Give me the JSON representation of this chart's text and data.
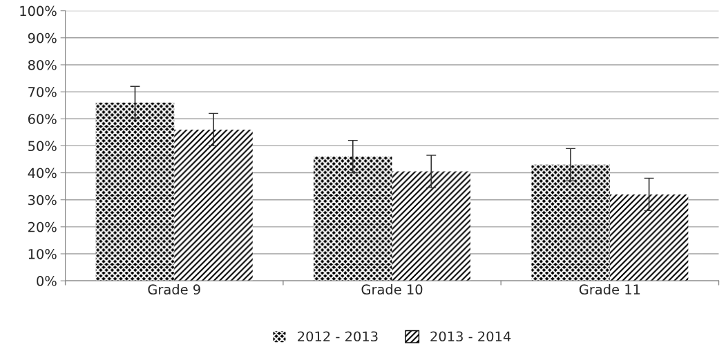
{
  "chart_data": {
    "type": "bar",
    "categories": [
      "Grade 9",
      "Grade 10",
      "Grade 11"
    ],
    "series": [
      {
        "name": "2012 - 2013",
        "color": "#000000",
        "values": [
          66,
          46,
          43
        ],
        "errors": [
          6,
          6,
          6
        ]
      },
      {
        "name": "2013 - 2014",
        "color": "#ffffff",
        "values": [
          56,
          40.5,
          32
        ],
        "errors": [
          6,
          6,
          6
        ]
      }
    ],
    "ylim": [
      0,
      100
    ],
    "yticks": [
      {
        "value": 0,
        "label": "0%"
      },
      {
        "value": 10,
        "label": "10%"
      },
      {
        "value": 20,
        "label": "20%"
      },
      {
        "value": 30,
        "label": "30%"
      },
      {
        "value": 40,
        "label": "40%"
      },
      {
        "value": 50,
        "label": "50%"
      },
      {
        "value": 60,
        "label": "60%"
      },
      {
        "value": 70,
        "label": "70%"
      },
      {
        "value": 80,
        "label": "80%"
      },
      {
        "value": 90,
        "label": "90%"
      },
      {
        "value": 100,
        "label": "100%"
      }
    ],
    "grid": "y",
    "legend": "bottom"
  }
}
